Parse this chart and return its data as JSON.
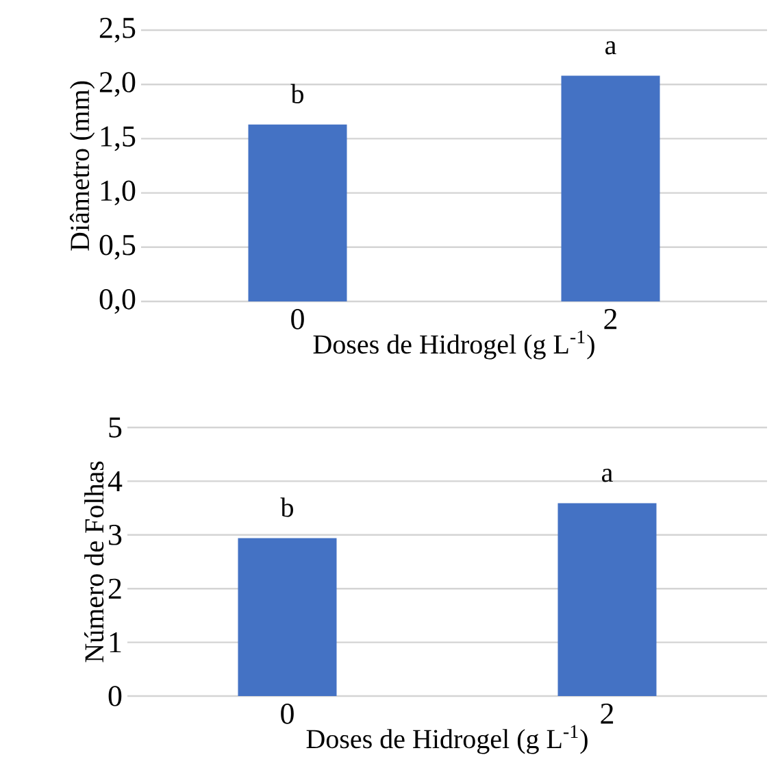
{
  "chart_data": [
    {
      "type": "bar",
      "categories": [
        "0",
        "2"
      ],
      "values": [
        1.63,
        2.08
      ],
      "color": "#4472c4",
      "xlabel": "Doses de Hidrogel (g L$^{-1}$)",
      "ylabel": "Diâmetro (mm)",
      "ylim": [
        0,
        2.5
      ],
      "yticks": [
        {
          "value": 0,
          "label": "0,0"
        },
        {
          "value": 0.5,
          "label": "0,5"
        },
        {
          "value": 1,
          "label": "1,0"
        },
        {
          "value": 1.5,
          "label": "1,5"
        },
        {
          "value": 2,
          "label": "2,0"
        },
        {
          "value": 2.5,
          "label": "2,5"
        }
      ],
      "grid": "y",
      "annotations": [
        "b",
        "a"
      ]
    },
    {
      "type": "bar",
      "categories": [
        "0",
        "2"
      ],
      "values": [
        2.94,
        3.59
      ],
      "color": "#4472c4",
      "xlabel": "Doses de Hidrogel (g L$^{-1}$)",
      "ylabel": "Número de Folhas",
      "ylim": [
        0,
        5
      ],
      "yticks": [
        0,
        1,
        2,
        3,
        4,
        5
      ],
      "grid": "y",
      "annotations": [
        "b",
        "a"
      ]
    }
  ]
}
